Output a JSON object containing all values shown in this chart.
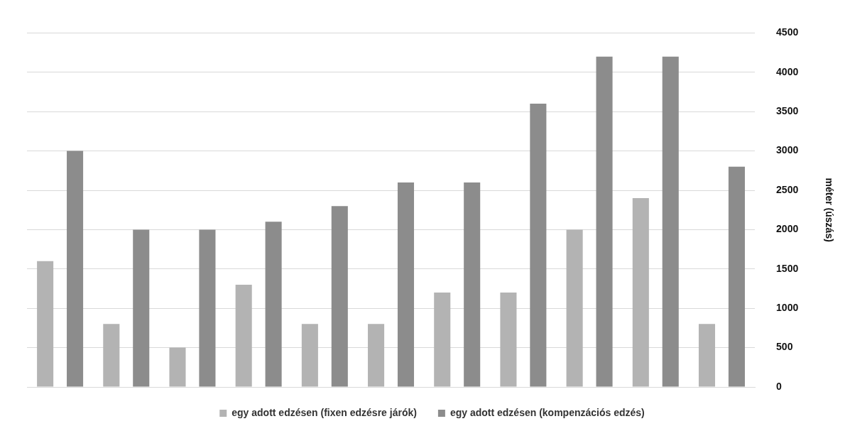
{
  "chart_data": {
    "type": "bar",
    "categories": [
      null,
      null,
      null,
      null,
      null,
      null,
      null,
      null,
      null,
      null,
      null
    ],
    "series": [
      {
        "name": "egy adott edzésen (fixen edzésre járók)",
        "color": "#b3b3b3",
        "values": [
          1600,
          800,
          500,
          1300,
          800,
          800,
          1200,
          1200,
          2000,
          2400,
          800
        ]
      },
      {
        "name": "egy adott edzésen (kompenzációs edzés)",
        "color": "#8c8c8c",
        "values": [
          3000,
          2000,
          2000,
          2100,
          2300,
          2600,
          2600,
          3600,
          4200,
          4200,
          2800
        ]
      }
    ],
    "ylabel": "méter (úszás)",
    "ylim": [
      0,
      4500
    ],
    "yticks": [
      0,
      500,
      1000,
      1500,
      2000,
      2500,
      3000,
      3500,
      4000,
      4500
    ],
    "grid": "y",
    "legend": "bottom"
  }
}
